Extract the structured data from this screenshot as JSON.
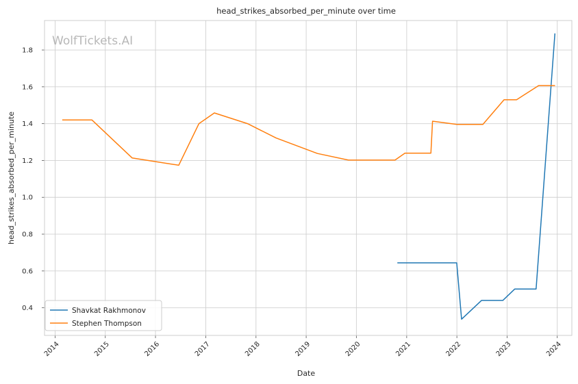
{
  "chart_data": {
    "type": "line",
    "title": "head_strikes_absorbed_per_minute over time",
    "xlabel": "Date",
    "ylabel": "head_strikes_absorbed_per_minute",
    "watermark": "WolfTickets.AI",
    "xlim": [
      "2013-10-16",
      "2024-04-16"
    ],
    "ylim": [
      0.25,
      1.96
    ],
    "x_ticks": [
      "2014",
      "2015",
      "2016",
      "2017",
      "2018",
      "2019",
      "2020",
      "2021",
      "2022",
      "2023",
      "2024"
    ],
    "y_ticks": [
      "0.4",
      "0.6",
      "0.8",
      "1.0",
      "1.2",
      "1.4",
      "1.6",
      "1.8"
    ],
    "grid": true,
    "legend_position": "lower-left",
    "series": [
      {
        "name": "Shavkat Rakhmonov",
        "color": "#1f77b4",
        "points": [
          {
            "x": "2020-10-25",
            "y": 0.644
          },
          {
            "x": "2021-06-01",
            "y": 0.644
          },
          {
            "x": "2021-12-31",
            "y": 0.644
          },
          {
            "x": "2022-02-04",
            "y": 0.338
          },
          {
            "x": "2022-06-29",
            "y": 0.44
          },
          {
            "x": "2022-12-01",
            "y": 0.44
          },
          {
            "x": "2023-02-26",
            "y": 0.502
          },
          {
            "x": "2023-07-31",
            "y": 0.502
          },
          {
            "x": "2023-12-15",
            "y": 1.89
          }
        ]
      },
      {
        "name": "Stephen Thompson",
        "color": "#ff7f0e",
        "points": [
          {
            "x": "2014-02-22",
            "y": 1.42
          },
          {
            "x": "2014-09-26",
            "y": 1.42
          },
          {
            "x": "2015-07-15",
            "y": 1.214
          },
          {
            "x": "2016-06-18",
            "y": 1.174
          },
          {
            "x": "2016-11-12",
            "y": 1.4
          },
          {
            "x": "2017-03-04",
            "y": 1.458
          },
          {
            "x": "2017-10-31",
            "y": 1.4
          },
          {
            "x": "2018-05-27",
            "y": 1.322
          },
          {
            "x": "2019-03-23",
            "y": 1.238
          },
          {
            "x": "2019-11-05",
            "y": 1.202
          },
          {
            "x": "2020-10-08",
            "y": 1.202
          },
          {
            "x": "2020-12-19",
            "y": 1.24
          },
          {
            "x": "2021-06-26",
            "y": 1.24
          },
          {
            "x": "2021-07-08",
            "y": 1.413
          },
          {
            "x": "2022-01-01",
            "y": 1.396
          },
          {
            "x": "2022-07-09",
            "y": 1.396
          },
          {
            "x": "2022-12-10",
            "y": 1.53
          },
          {
            "x": "2023-03-11",
            "y": 1.53
          },
          {
            "x": "2023-08-19",
            "y": 1.607
          },
          {
            "x": "2023-12-16",
            "y": 1.607
          }
        ]
      }
    ]
  }
}
